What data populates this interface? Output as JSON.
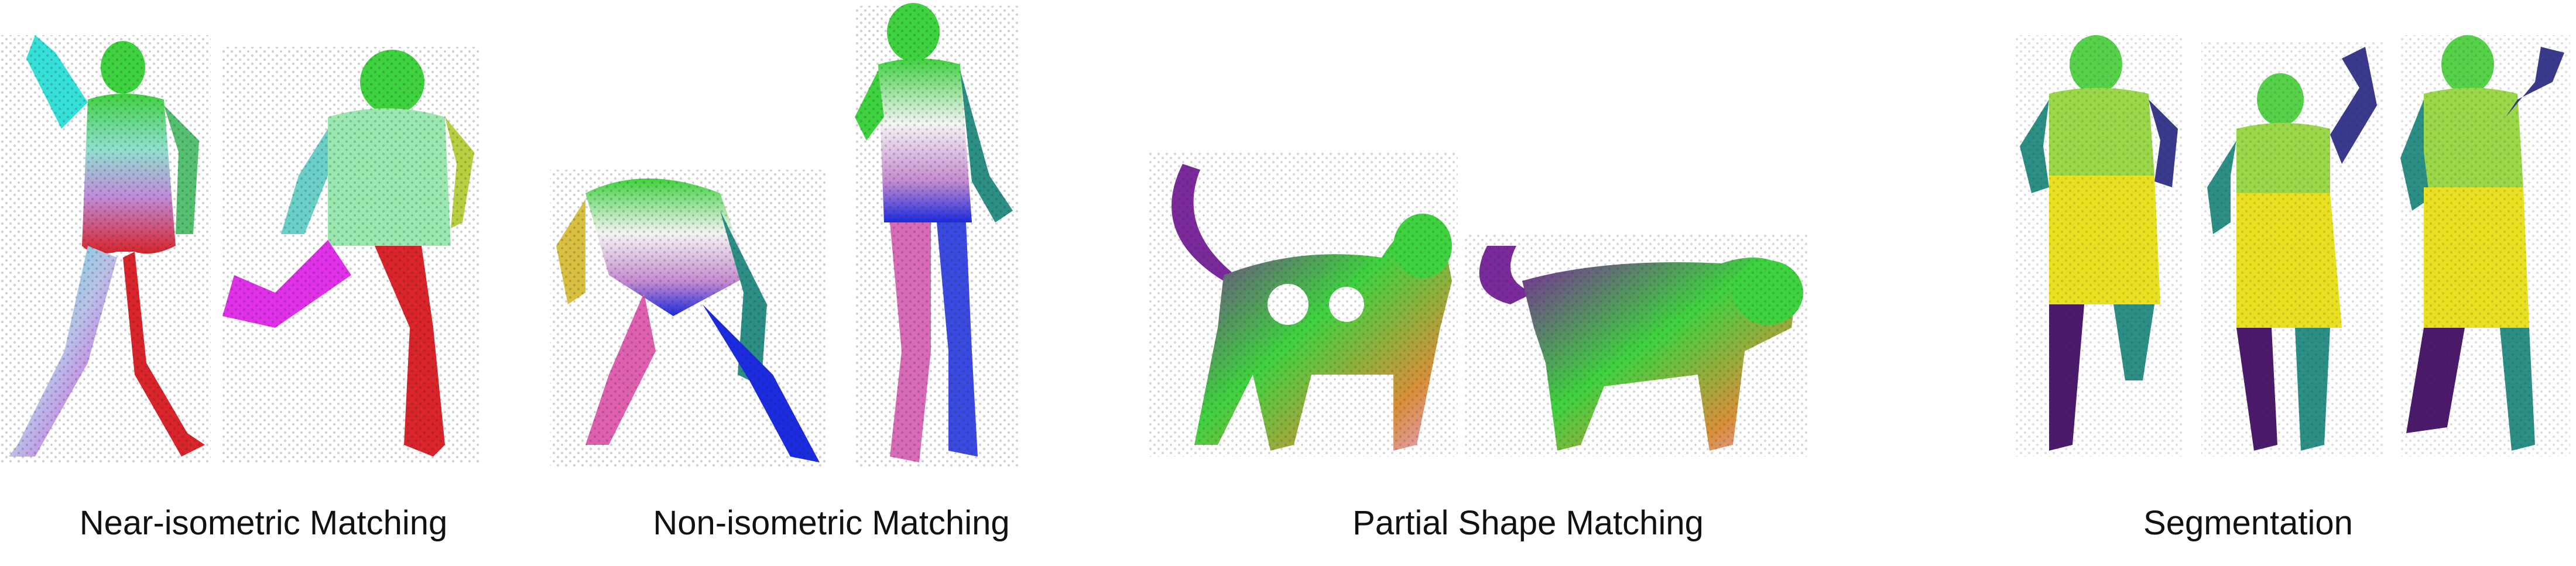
{
  "panels": [
    {
      "caption": "Near-isometric Matching"
    },
    {
      "caption": "Non-isometric Matching"
    },
    {
      "caption": "Partial Shape Matching"
    },
    {
      "caption": "Segmentation"
    }
  ],
  "colors": {
    "green": "#3fd23f",
    "cyan": "#35e0d8",
    "magenta": "#e030e8",
    "red": "#d8242a",
    "yellow": "#e8e021",
    "navy": "#3a3a8c",
    "teal": "#2b8f86",
    "purple": "#4b1a6a",
    "orange": "#d98f3a",
    "blue": "#1a2be0"
  }
}
